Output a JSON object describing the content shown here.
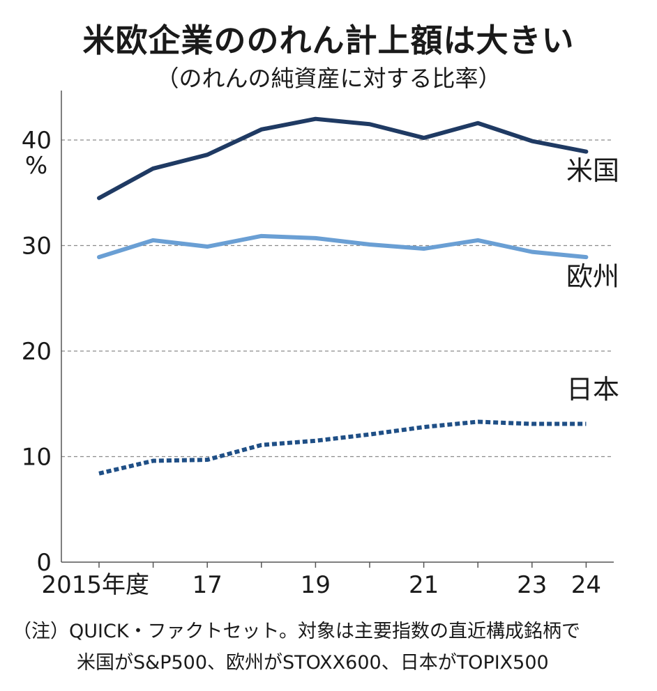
{
  "title": "米欧企業ののれん計上額は大きい",
  "subtitle": "（のれんの純資産に対する比率）",
  "chart_data": {
    "type": "line",
    "title": "米欧企業ののれん計上額は大きい",
    "subtitle": "（のれんの純資産に対する比率）",
    "xlabel": "",
    "ylabel": "%",
    "ylim": [
      0,
      45
    ],
    "grid": true,
    "x": [
      2015,
      2016,
      2017,
      2018,
      2019,
      2020,
      2021,
      2022,
      2023,
      2024
    ],
    "x_tick_labels": [
      {
        "x": 2015,
        "label": "2015年度"
      },
      {
        "x": 2017,
        "label": "17"
      },
      {
        "x": 2019,
        "label": "19"
      },
      {
        "x": 2021,
        "label": "21"
      },
      {
        "x": 2023,
        "label": "23"
      },
      {
        "x": 2024,
        "label": "24"
      }
    ],
    "y_ticks": [
      0,
      10,
      20,
      30,
      40
    ],
    "series": [
      {
        "name": "米国",
        "color": "#1f3a63",
        "style": "solid",
        "values": [
          34.5,
          37.3,
          38.6,
          41.0,
          42.0,
          41.5,
          40.2,
          41.6,
          39.9,
          38.9
        ]
      },
      {
        "name": "欧州",
        "color": "#6a9fd4",
        "style": "solid",
        "values": [
          28.9,
          30.5,
          29.9,
          30.9,
          30.7,
          30.1,
          29.7,
          30.5,
          29.4,
          28.9
        ]
      },
      {
        "name": "日本",
        "color": "#1f4f86",
        "style": "dotted",
        "values": [
          8.4,
          9.6,
          9.7,
          11.1,
          11.5,
          12.1,
          12.8,
          13.3,
          13.1,
          13.1
        ]
      }
    ]
  },
  "note": {
    "line1": "（注）QUICK・ファクトセット。対象は主要指数の直近構成銘柄で",
    "line2": "米国がS&P500、欧州がSTOXX600、日本がTOPIX500"
  }
}
